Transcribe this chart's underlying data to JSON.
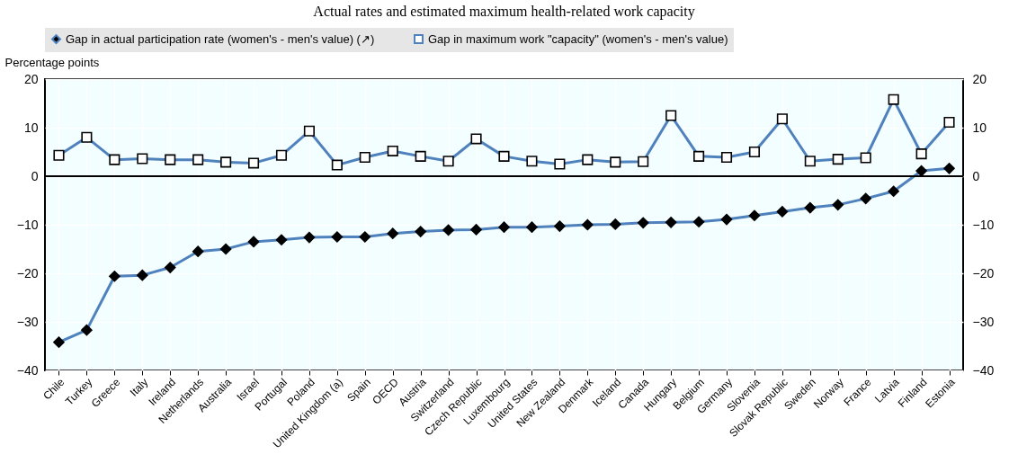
{
  "chart_data": {
    "type": "line",
    "title": "Actual rates and estimated maximum health-related work capacity",
    "ylabel": "Percentage points",
    "categories": [
      "Chile",
      "Turkey",
      "Greece",
      "Italy",
      "Ireland",
      "Netherlands",
      "Australia",
      "Israel",
      "Portugal",
      "Poland",
      "United Kingdom (a)",
      "Spain",
      "OECD",
      "Austria",
      "Switzerland",
      "Czech Republic",
      "Luxembourg",
      "United States",
      "New Zealand",
      "Denmark",
      "Iceland",
      "Canada",
      "Hungary",
      "Belgium",
      "Germany",
      "Slovenia",
      "Slovak Republic",
      "Sweden",
      "Norway",
      "France",
      "Latvia",
      "Finland",
      "Estonia"
    ],
    "series": [
      {
        "name": "Gap in actual participation rate (women's - men's value) (↗)",
        "color": "#4f81bd",
        "marker": "diamond",
        "values": [
          -34.2,
          -31.7,
          -20.6,
          -20.4,
          -18.8,
          -15.5,
          -15.0,
          -13.5,
          -13.1,
          -12.6,
          -12.5,
          -12.5,
          -11.8,
          -11.4,
          -11.1,
          -11.0,
          -10.5,
          -10.5,
          -10.3,
          -10.0,
          -9.9,
          -9.6,
          -9.5,
          -9.4,
          -8.9,
          -8.1,
          -7.3,
          -6.5,
          -5.9,
          -4.6,
          -3.1,
          1.1,
          1.6
        ]
      },
      {
        "name": "Gap in maximum work \"capacity\" (women's - men's value)",
        "color": "#4f81bd",
        "marker": "square",
        "values": [
          4.3,
          8.0,
          3.4,
          3.6,
          3.4,
          3.4,
          2.9,
          2.7,
          4.3,
          9.3,
          2.3,
          3.9,
          5.2,
          4.1,
          3.1,
          7.7,
          4.1,
          3.1,
          2.5,
          3.4,
          2.9,
          3.0,
          12.5,
          4.1,
          3.9,
          5.0,
          11.8,
          3.1,
          3.5,
          3.8,
          15.8,
          4.6,
          11.1
        ]
      }
    ],
    "ylim": [
      -40,
      20
    ],
    "yticks": [
      -40,
      -30,
      -20,
      -10,
      0,
      10,
      20
    ],
    "y2lim": [
      -40,
      20
    ],
    "y2ticks": [
      -40,
      -30,
      -20,
      -10,
      0,
      10,
      20
    ],
    "ref_lines": [
      {
        "axis": "y",
        "value": 0,
        "color": "#000000"
      }
    ],
    "grid": true,
    "legend": "top"
  }
}
